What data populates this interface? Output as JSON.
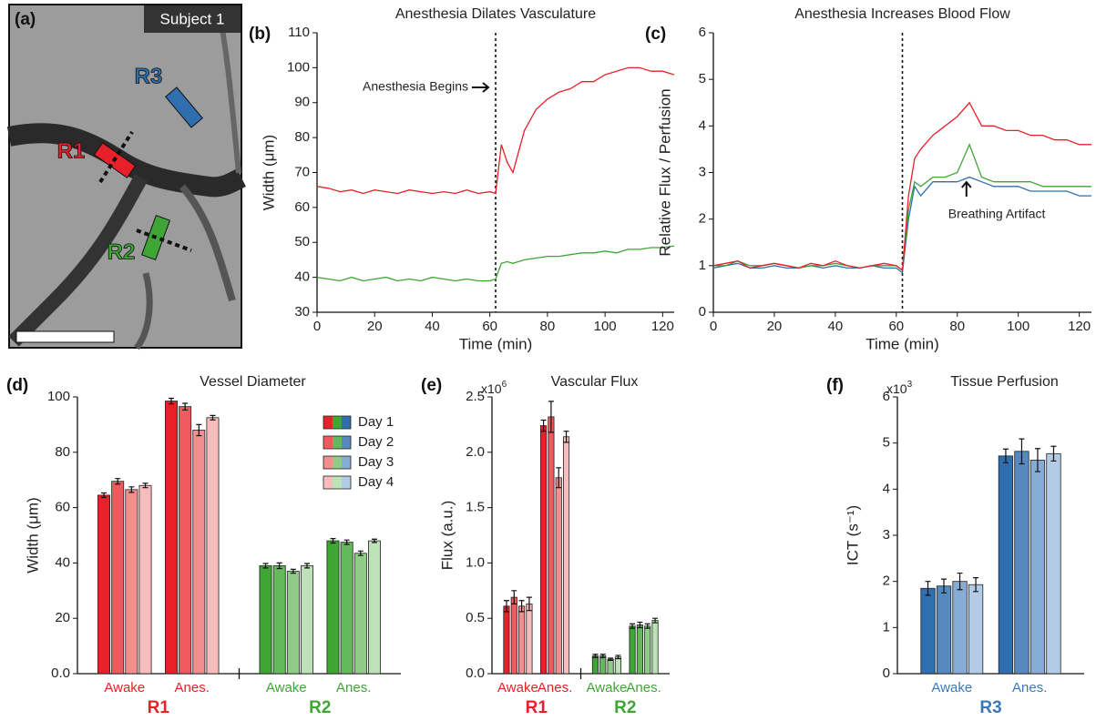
{
  "image_panel": {
    "panel_label": "(a)",
    "caption": "Subject 1",
    "regions": [
      "R1",
      "R2",
      "R3"
    ]
  },
  "chart_data": [
    {
      "type": "line",
      "panel_label": "(b)",
      "title": "Anesthesia Dilates Vasculature",
      "x_label": "Time (min)",
      "y_label": "Width (μm)",
      "annotation": "Anesthesia Begins",
      "event_x": 62,
      "x": [
        0,
        4,
        8,
        12,
        16,
        20,
        24,
        28,
        32,
        36,
        40,
        44,
        48,
        52,
        56,
        60,
        62,
        64,
        66,
        68,
        72,
        76,
        80,
        84,
        88,
        92,
        96,
        100,
        104,
        108,
        112,
        116,
        120,
        124
      ],
      "series": [
        {
          "name": "R1",
          "color": "#e8202a",
          "values": [
            66,
            65.5,
            64.5,
            65,
            64,
            65,
            64.5,
            64,
            65,
            64.5,
            64,
            64.5,
            64,
            65,
            64,
            64.5,
            64,
            78,
            73,
            70,
            82,
            88,
            91,
            93,
            94,
            96,
            96,
            98,
            99,
            100,
            100,
            99,
            99,
            98
          ]
        },
        {
          "name": "R2",
          "color": "#3fa535",
          "values": [
            40,
            39.5,
            39,
            40,
            39,
            39.5,
            40,
            39,
            39.5,
            39,
            40,
            39.5,
            39,
            39.5,
            39,
            39,
            39.5,
            44,
            44.5,
            44,
            45,
            45.5,
            46,
            46,
            46.5,
            47,
            47,
            47.5,
            47,
            48,
            48,
            48.5,
            48.5,
            49
          ]
        }
      ],
      "xlim": [
        0,
        124
      ],
      "xticks": [
        0,
        20,
        40,
        60,
        80,
        100,
        120
      ],
      "ylim": [
        30,
        110
      ],
      "yticks": [
        30,
        40,
        50,
        60,
        70,
        80,
        90,
        100,
        110
      ]
    },
    {
      "type": "line",
      "panel_label": "(c)",
      "title": "Anesthesia Increases Blood Flow",
      "x_label": "Time (min)",
      "y_label": "Relative Flux / Perfusion",
      "annotation": "Breathing Artifact",
      "event_x": 62,
      "x": [
        0,
        4,
        8,
        12,
        16,
        20,
        24,
        28,
        32,
        36,
        40,
        44,
        48,
        52,
        56,
        60,
        62,
        64,
        66,
        68,
        72,
        76,
        80,
        84,
        88,
        92,
        96,
        100,
        104,
        108,
        112,
        116,
        120,
        124
      ],
      "series": [
        {
          "name": "R3",
          "color": "#2f6fb0",
          "values": [
            0.95,
            1,
            1.05,
            0.95,
            0.95,
            1,
            0.95,
            0.95,
            1,
            0.95,
            1,
            0.95,
            0.95,
            1,
            0.95,
            0.95,
            0.85,
            2,
            2.7,
            2.5,
            2.8,
            2.8,
            2.8,
            2.9,
            2.8,
            2.7,
            2.7,
            2.7,
            2.6,
            2.6,
            2.6,
            2.6,
            2.5,
            2.5
          ]
        },
        {
          "name": "R2",
          "color": "#3fa535",
          "values": [
            1,
            1,
            1.1,
            1,
            1,
            1.05,
            1,
            0.95,
            1,
            1,
            1.05,
            1,
            0.95,
            1,
            1,
            1,
            0.9,
            2.2,
            2.8,
            2.7,
            2.9,
            2.9,
            3,
            3.6,
            2.9,
            2.8,
            2.8,
            2.8,
            2.8,
            2.7,
            2.7,
            2.7,
            2.7,
            2.7
          ]
        },
        {
          "name": "R1",
          "color": "#e8202a",
          "values": [
            1,
            1.05,
            1.1,
            0.95,
            1,
            1.05,
            1,
            0.95,
            1.05,
            1,
            1.1,
            1,
            0.95,
            1,
            1.05,
            1,
            0.9,
            2.5,
            3.3,
            3.5,
            3.8,
            4,
            4.2,
            4.5,
            4,
            4,
            3.9,
            3.9,
            3.8,
            3.8,
            3.7,
            3.7,
            3.6,
            3.6
          ]
        }
      ],
      "xlim": [
        0,
        124
      ],
      "xticks": [
        0,
        20,
        40,
        60,
        80,
        100,
        120
      ],
      "ylim": [
        0,
        6
      ],
      "yticks": [
        0,
        1,
        2,
        3,
        4,
        5,
        6
      ]
    },
    {
      "type": "bar",
      "panel_label": "(d)",
      "title": "Vessel Diameter",
      "y_label": "Width (μm)",
      "legend": true,
      "groups": [
        {
          "name": "R1",
          "color": "#e8202a",
          "categories": [
            "Awake",
            "Anes."
          ]
        },
        {
          "name": "R2",
          "color": "#3fa535",
          "categories": [
            "Awake",
            "Anes."
          ]
        }
      ],
      "series": [
        {
          "name": "Day 1",
          "colors": [
            "#e8202a",
            "#3fa535",
            "#2f6fb0"
          ],
          "values": [
            64.5,
            98.5,
            39,
            48
          ],
          "errors": [
            0.8,
            1,
            0.8,
            0.8
          ]
        },
        {
          "name": "Day 2",
          "colors": [
            "#ee5a5e",
            "#64b95a",
            "#5589c0"
          ],
          "values": [
            69.5,
            96.5,
            39,
            47.5
          ],
          "errors": [
            1,
            1.2,
            1,
            0.8
          ]
        },
        {
          "name": "Day 3",
          "colors": [
            "#f28e8e",
            "#8fcc87",
            "#86acd6"
          ],
          "values": [
            66.5,
            88,
            37,
            43.5
          ],
          "errors": [
            1,
            2,
            0.7,
            0.8
          ]
        },
        {
          "name": "Day 4",
          "colors": [
            "#f7bcbc",
            "#bde2b8",
            "#b3cbe6"
          ],
          "values": [
            68,
            92.5,
            39,
            48
          ],
          "errors": [
            0.8,
            0.8,
            0.8,
            0.6
          ]
        }
      ],
      "ylim": [
        0,
        100
      ],
      "yticks": [
        {
          "value": 0,
          "label": "0.0"
        },
        20,
        40,
        60,
        80,
        100
      ]
    },
    {
      "type": "bar",
      "panel_label": "(e)",
      "title": "Vascular Flux",
      "y_label": "Flux (a.u.)",
      "y_multiplier": {
        "base": "x10",
        "exponent": "6"
      },
      "legend": false,
      "groups": [
        {
          "name": "R1",
          "color": "#e8202a",
          "categories": [
            "Awake",
            "Anes."
          ]
        },
        {
          "name": "R2",
          "color": "#3fa535",
          "categories": [
            "Awake",
            "Anes."
          ]
        }
      ],
      "series": [
        {
          "name": "Day 1",
          "colors": [
            "#e8202a",
            "#3fa535"
          ],
          "values": [
            0.61,
            2.24,
            0.16,
            0.43
          ],
          "errors": [
            0.05,
            0.05,
            0.015,
            0.02
          ]
        },
        {
          "name": "Day 2",
          "colors": [
            "#ee5a5e",
            "#64b95a"
          ],
          "values": [
            0.69,
            2.32,
            0.16,
            0.44
          ],
          "errors": [
            0.06,
            0.14,
            0.015,
            0.025
          ]
        },
        {
          "name": "Day 3",
          "colors": [
            "#f28e8e",
            "#8fcc87"
          ],
          "values": [
            0.61,
            1.77,
            0.13,
            0.43
          ],
          "errors": [
            0.05,
            0.09,
            0.01,
            0.02
          ]
        },
        {
          "name": "Day 4",
          "colors": [
            "#f7bcbc",
            "#bde2b8"
          ],
          "values": [
            0.63,
            2.14,
            0.15,
            0.48
          ],
          "errors": [
            0.06,
            0.05,
            0.015,
            0.02
          ]
        }
      ],
      "ylim": [
        0,
        2.5
      ],
      "yticks": [
        {
          "value": 0,
          "label": "0.0"
        },
        0.5,
        {
          "value": 1,
          "label": "1.0"
        },
        1.5,
        {
          "value": 2,
          "label": "2.0"
        },
        2.5
      ]
    },
    {
      "type": "bar",
      "panel_label": "(f)",
      "title": "Tissue Perfusion",
      "y_label": "ICT (s⁻¹)",
      "y_multiplier": {
        "base": "x10",
        "exponent": "3"
      },
      "legend": false,
      "groups": [
        {
          "name": "R3",
          "color": "#3a78b8",
          "categories": [
            "Awake",
            "Anes."
          ]
        }
      ],
      "series": [
        {
          "name": "Day 1",
          "colors": [
            "#2f6fb0"
          ],
          "values": [
            1.85,
            4.72
          ],
          "errors": [
            0.15,
            0.15
          ]
        },
        {
          "name": "Day 2",
          "colors": [
            "#5589c0"
          ],
          "values": [
            1.9,
            4.82
          ],
          "errors": [
            0.15,
            0.27
          ]
        },
        {
          "name": "Day 3",
          "colors": [
            "#86acd6"
          ],
          "values": [
            2,
            4.63
          ],
          "errors": [
            0.18,
            0.25
          ]
        },
        {
          "name": "Day 4",
          "colors": [
            "#b3cbe6"
          ],
          "values": [
            1.93,
            4.77
          ],
          "errors": [
            0.15,
            0.16
          ]
        }
      ],
      "ylim": [
        0,
        6
      ],
      "yticks": [
        0,
        1,
        2,
        3,
        4,
        5,
        6
      ]
    }
  ]
}
